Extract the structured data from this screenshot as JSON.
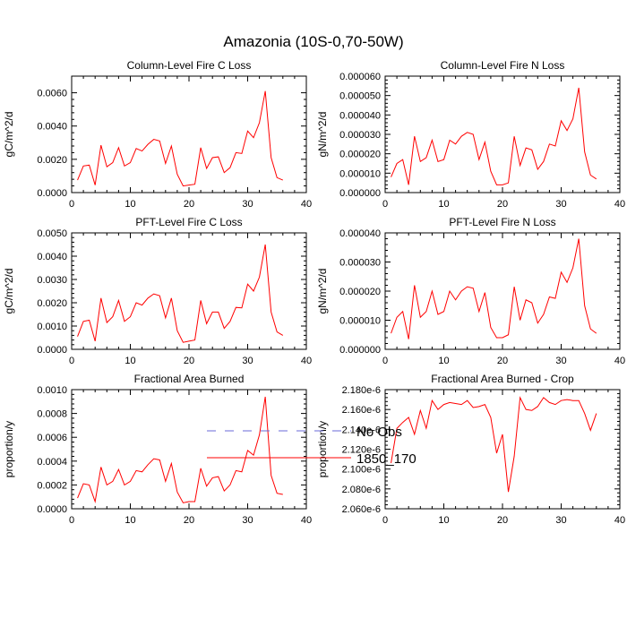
{
  "figure_title": "Amazonia (10S-0,70-50W)",
  "legend": {
    "entries": [
      {
        "label": "No Obs",
        "color": "#6a6ad8",
        "style": "dashed"
      },
      {
        "label": "1850_170",
        "color": "#ff0000",
        "style": "solid"
      }
    ]
  },
  "chart_data": [
    {
      "type": "line",
      "title": "Column-Level Fire C Loss",
      "ylabel": "gC/m^2/d",
      "xlim": [
        0,
        40
      ],
      "ylim": [
        0,
        0.007
      ],
      "xticks": [
        0,
        10,
        20,
        30,
        40
      ],
      "yticks": [
        0,
        0.002,
        0.004,
        0.006
      ],
      "ytick_labels": [
        "0.0000",
        "0.0020",
        "0.0040",
        "0.0060"
      ],
      "series": [
        {
          "name": "1850_170",
          "x": [
            1,
            2,
            3,
            4,
            5,
            6,
            7,
            8,
            9,
            10,
            11,
            12,
            13,
            14,
            15,
            16,
            17,
            18,
            19,
            20,
            21,
            22,
            23,
            24,
            25,
            26,
            27,
            28,
            29,
            30,
            31,
            32,
            33,
            34,
            35,
            36
          ],
          "values": [
            0.00075,
            0.0016,
            0.00165,
            0.00045,
            0.00285,
            0.00155,
            0.0018,
            0.0027,
            0.0016,
            0.0018,
            0.00265,
            0.0025,
            0.0029,
            0.0032,
            0.0031,
            0.00175,
            0.0028,
            0.0011,
            0.0004,
            0.00045,
            0.0005,
            0.0027,
            0.00145,
            0.0021,
            0.00215,
            0.0012,
            0.0015,
            0.0024,
            0.00235,
            0.0037,
            0.0033,
            0.0042,
            0.0061,
            0.0021,
            0.0009,
            0.00075
          ]
        }
      ]
    },
    {
      "type": "line",
      "title": "Column-Level Fire N Loss",
      "ylabel": "gN/m^2/d",
      "xlim": [
        0,
        40
      ],
      "ylim": [
        0,
        6e-05
      ],
      "xticks": [
        0,
        10,
        20,
        30,
        40
      ],
      "yticks": [
        0,
        1e-05,
        2e-05,
        3e-05,
        4e-05,
        5e-05,
        6e-05
      ],
      "ytick_labels": [
        "0.000000",
        "0.000010",
        "0.000020",
        "0.000030",
        "0.000040",
        "0.000050",
        "0.000060"
      ],
      "series": [
        {
          "name": "1850_170",
          "x": [
            1,
            2,
            3,
            4,
            5,
            6,
            7,
            8,
            9,
            10,
            11,
            12,
            13,
            14,
            15,
            16,
            17,
            18,
            19,
            20,
            21,
            22,
            23,
            24,
            25,
            26,
            27,
            28,
            29,
            30,
            31,
            32,
            33,
            34,
            35,
            36
          ],
          "values": [
            8e-06,
            1.5e-05,
            1.7e-05,
            4e-06,
            2.9e-05,
            1.6e-05,
            1.8e-05,
            2.7e-05,
            1.6e-05,
            1.7e-05,
            2.7e-05,
            2.5e-05,
            2.9e-05,
            3.1e-05,
            3e-05,
            1.7e-05,
            2.6e-05,
            1.1e-05,
            4e-06,
            4e-06,
            5e-06,
            2.9e-05,
            1.4e-05,
            2.3e-05,
            2.2e-05,
            1.2e-05,
            1.6e-05,
            2.5e-05,
            2.4e-05,
            3.7e-05,
            3.2e-05,
            3.8e-05,
            5.4e-05,
            2.1e-05,
            9e-06,
            7e-06
          ]
        }
      ]
    },
    {
      "type": "line",
      "title": "PFT-Level Fire C Loss",
      "ylabel": "gC/m^2/d",
      "xlim": [
        0,
        40
      ],
      "ylim": [
        0,
        0.005
      ],
      "xticks": [
        0,
        10,
        20,
        30,
        40
      ],
      "yticks": [
        0,
        0.001,
        0.002,
        0.003,
        0.004,
        0.005
      ],
      "ytick_labels": [
        "0.0000",
        "0.0010",
        "0.0020",
        "0.0030",
        "0.0040",
        "0.0050"
      ],
      "series": [
        {
          "name": "1850_170",
          "x": [
            1,
            2,
            3,
            4,
            5,
            6,
            7,
            8,
            9,
            10,
            11,
            12,
            13,
            14,
            15,
            16,
            17,
            18,
            19,
            20,
            21,
            22,
            23,
            24,
            25,
            26,
            27,
            28,
            29,
            30,
            31,
            32,
            33,
            34,
            35,
            36
          ],
          "values": [
            0.00055,
            0.0012,
            0.00125,
            0.00035,
            0.0022,
            0.00115,
            0.0014,
            0.0021,
            0.0012,
            0.0014,
            0.002,
            0.0019,
            0.0022,
            0.00238,
            0.0023,
            0.00135,
            0.0022,
            0.0008,
            0.0003,
            0.00035,
            0.0004,
            0.0021,
            0.0011,
            0.0016,
            0.0016,
            0.0009,
            0.0012,
            0.0018,
            0.00178,
            0.0028,
            0.0025,
            0.0031,
            0.0045,
            0.0016,
            0.00075,
            0.0006
          ]
        }
      ]
    },
    {
      "type": "line",
      "title": "PFT-Level Fire N Loss",
      "ylabel": "gN/m^2/d",
      "xlim": [
        0,
        40
      ],
      "ylim": [
        0,
        4e-05
      ],
      "xticks": [
        0,
        10,
        20,
        30,
        40
      ],
      "yticks": [
        0,
        1e-05,
        2e-05,
        3e-05,
        4e-05
      ],
      "ytick_labels": [
        "0.000000",
        "0.000010",
        "0.000020",
        "0.000030",
        "0.000040"
      ],
      "series": [
        {
          "name": "1850_170",
          "x": [
            1,
            2,
            3,
            4,
            5,
            6,
            7,
            8,
            9,
            10,
            11,
            12,
            13,
            14,
            15,
            16,
            17,
            18,
            19,
            20,
            21,
            22,
            23,
            24,
            25,
            26,
            27,
            28,
            29,
            30,
            31,
            32,
            33,
            34,
            35,
            36
          ],
          "values": [
            5.5e-06,
            1.1e-05,
            1.3e-05,
            3.5e-06,
            2.2e-05,
            1.1e-05,
            1.3e-05,
            2e-05,
            1.2e-05,
            1.3e-05,
            2e-05,
            1.7e-05,
            2e-05,
            2.15e-05,
            2.1e-05,
            1.3e-05,
            1.95e-05,
            7.5e-06,
            4e-06,
            4e-06,
            5e-06,
            2.15e-05,
            1e-05,
            1.7e-05,
            1.6e-05,
            9e-06,
            1.2e-05,
            1.8e-05,
            1.75e-05,
            2.65e-05,
            2.3e-05,
            2.8e-05,
            3.8e-05,
            1.5e-05,
            7e-06,
            5.5e-06
          ]
        }
      ]
    },
    {
      "type": "line",
      "title": "Fractional Area Burned",
      "ylabel": "proportion/y",
      "xlim": [
        0,
        40
      ],
      "ylim": [
        0,
        0.001
      ],
      "xticks": [
        0,
        10,
        20,
        30,
        40
      ],
      "yticks": [
        0,
        0.0002,
        0.0004,
        0.0006,
        0.0008,
        0.001
      ],
      "ytick_labels": [
        "0.0000",
        "0.0002",
        "0.0004",
        "0.0006",
        "0.0008",
        "0.0010"
      ],
      "series": [
        {
          "name": "1850_170",
          "x": [
            1,
            2,
            3,
            4,
            5,
            6,
            7,
            8,
            9,
            10,
            11,
            12,
            13,
            14,
            15,
            16,
            17,
            18,
            19,
            20,
            21,
            22,
            23,
            24,
            25,
            26,
            27,
            28,
            29,
            30,
            31,
            32,
            33,
            34,
            35,
            36
          ],
          "values": [
            9e-05,
            0.00021,
            0.0002,
            6e-05,
            0.00035,
            0.0002,
            0.00023,
            0.00033,
            0.0002,
            0.00023,
            0.00032,
            0.00031,
            0.00037,
            0.00042,
            0.00041,
            0.00023,
            0.00038,
            0.00014,
            5e-05,
            6e-05,
            6e-05,
            0.00034,
            0.00019,
            0.00026,
            0.00027,
            0.00015,
            0.0002,
            0.00032,
            0.00031,
            0.00049,
            0.00045,
            0.00062,
            0.00094,
            0.00028,
            0.00013,
            0.00012
          ]
        }
      ]
    },
    {
      "type": "line",
      "title": "Fractional Area Burned - Crop",
      "ylabel": "proportion/y",
      "xlim": [
        0,
        40
      ],
      "ylim": [
        2.06e-06,
        2.18e-06
      ],
      "xticks": [
        0,
        10,
        20,
        30,
        40
      ],
      "yticks": [
        2.06e-06,
        2.08e-06,
        2.1e-06,
        2.12e-06,
        2.14e-06,
        2.16e-06,
        2.18e-06
      ],
      "ytick_labels": [
        "2.060e-6",
        "2.080e-6",
        "2.100e-6",
        "2.120e-6",
        "2.140e-6",
        "2.160e-6",
        "2.180e-6"
      ],
      "series": [
        {
          "name": "1850_170",
          "x": [
            1,
            2,
            3,
            4,
            5,
            6,
            7,
            8,
            9,
            10,
            11,
            12,
            13,
            14,
            15,
            16,
            17,
            18,
            19,
            20,
            21,
            22,
            23,
            24,
            25,
            26,
            27,
            28,
            29,
            30,
            31,
            32,
            33,
            34,
            35,
            36
          ],
          "values": [
            2.106e-06,
            2.141e-06,
            2.147e-06,
            2.152e-06,
            2.135e-06,
            2.159e-06,
            2.141e-06,
            2.169e-06,
            2.16e-06,
            2.165e-06,
            2.167e-06,
            2.166e-06,
            2.165e-06,
            2.169e-06,
            2.162e-06,
            2.163e-06,
            2.165e-06,
            2.152e-06,
            2.116e-06,
            2.135e-06,
            2.077e-06,
            2.113e-06,
            2.172e-06,
            2.16e-06,
            2.159e-06,
            2.163e-06,
            2.172e-06,
            2.167e-06,
            2.165e-06,
            2.169e-06,
            2.17e-06,
            2.169e-06,
            2.169e-06,
            2.156e-06,
            2.139e-06,
            2.156e-06
          ]
        }
      ]
    }
  ]
}
